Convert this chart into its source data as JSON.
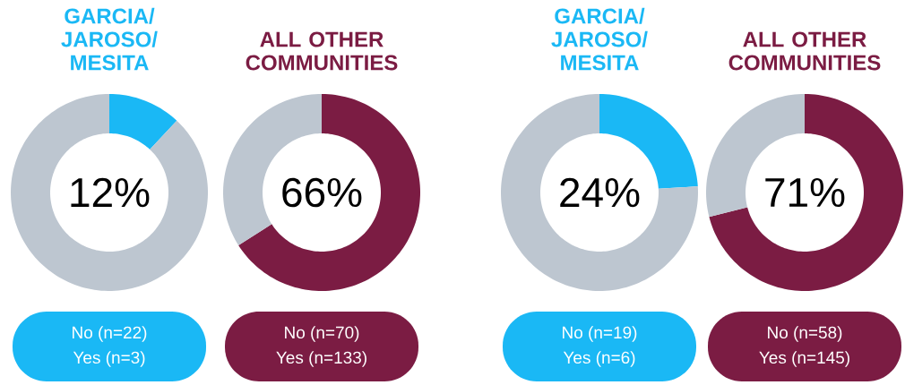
{
  "chart_data": [
    {
      "type": "donut",
      "title": "GARCIA/ JAROSO/ MESITA",
      "categories": [
        null,
        null
      ],
      "values": [
        12,
        88
      ],
      "colors": [
        "#1ab8f5",
        "#bdc6d0"
      ],
      "annotations": [
        "12%",
        "No (n=22)",
        "Yes (n=3)"
      ]
    },
    {
      "type": "donut",
      "title": "ALL OTHER COMMUNITIES",
      "categories": [
        null,
        null
      ],
      "values": [
        66,
        34
      ],
      "colors": [
        "#7b1c43",
        "#bdc6d0"
      ],
      "annotations": [
        "66%",
        "No (n=70)",
        "Yes (n=133)"
      ]
    },
    {
      "type": "donut",
      "title": "GARCIA/ JAROSO/ MESITA",
      "categories": [
        null,
        null
      ],
      "values": [
        24,
        76
      ],
      "colors": [
        "#1ab8f5",
        "#bdc6d0"
      ],
      "annotations": [
        "24%",
        "No (n=19)",
        "Yes (n=6)"
      ]
    },
    {
      "type": "donut",
      "title": "ALL OTHER COMMUNITIES",
      "categories": [
        null,
        null
      ],
      "values": [
        71,
        29
      ],
      "colors": [
        "#7b1c43",
        "#bdc6d0"
      ],
      "annotations": [
        "71%",
        "No (n=58)",
        "Yes (n=145)"
      ]
    }
  ]
}
